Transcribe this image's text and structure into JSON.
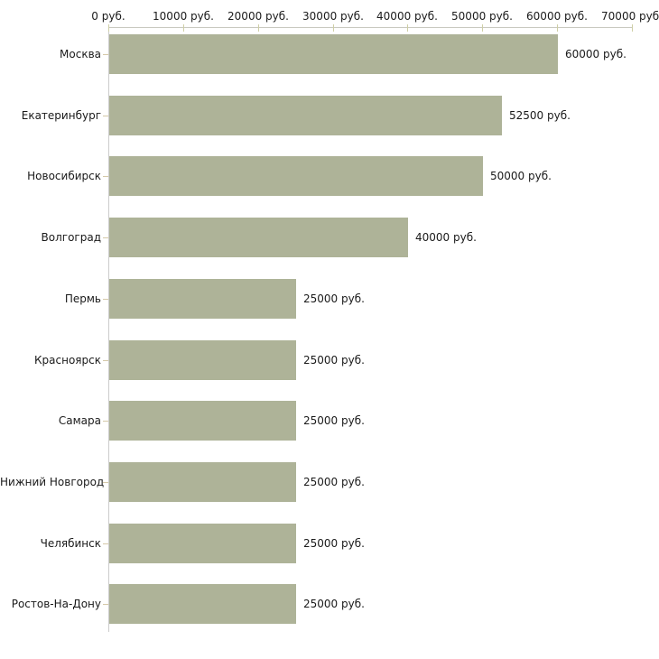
{
  "chart_data": {
    "type": "bar",
    "orientation": "horizontal",
    "title": "",
    "xlabel": "",
    "ylabel": "",
    "unit": "руб.",
    "categories": [
      "Москва",
      "Екатеринбург",
      "Новосибирск",
      "Волгоград",
      "Пермь",
      "Красноярск",
      "Самара",
      "Нижний Новгород",
      "Челябинск",
      "Ростов-На-Дону"
    ],
    "values": [
      60000,
      52500,
      50000,
      40000,
      25000,
      25000,
      25000,
      25000,
      25000,
      25000
    ],
    "value_labels": [
      "60000 руб.",
      "52500 руб.",
      "50000 руб.",
      "40000 руб.",
      "25000 руб.",
      "25000 руб.",
      "25000 руб.",
      "25000 руб.",
      "25000 руб.",
      "25000 руб."
    ],
    "x_tick_labels": [
      "0 руб.",
      "10000 руб.",
      "20000 руб.",
      "30000 руб.",
      "40000 руб.",
      "50000 руб.",
      "60000 руб.",
      "70000 руб."
    ],
    "x_tick_values": [
      0,
      10000,
      20000,
      30000,
      40000,
      50000,
      60000,
      70000
    ],
    "xlim": [
      0,
      70000
    ],
    "axis_position": "top",
    "grid": false,
    "legend": false,
    "colors": {
      "bar": "#aeb398",
      "h_axis_line": "#c9c9c0",
      "v_axis_line": "#cccccc",
      "x_tick": "#cfcfa6",
      "category_tick": "#d4c8a8",
      "text": "#1a1a1a",
      "background": "#ffffff"
    }
  }
}
